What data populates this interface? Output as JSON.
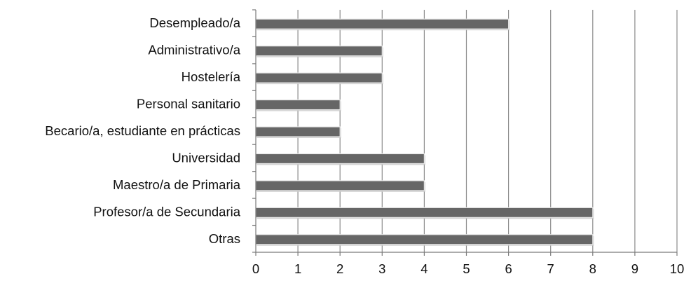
{
  "chart_data": {
    "type": "bar",
    "orientation": "horizontal",
    "categories": [
      "Desempleado/a",
      "Administrativo/a",
      "Hostelería",
      "Personal sanitario",
      "Becario/a, estudiante en prácticas",
      "Universidad",
      "Maestro/a de Primaria",
      "Profesor/a de Secundaria",
      "Otras"
    ],
    "values": [
      6,
      3,
      3,
      2,
      2,
      4,
      4,
      8,
      8
    ],
    "title": "",
    "xlabel": "",
    "ylabel": "",
    "xlim": [
      0,
      10
    ],
    "xticks": [
      "0",
      "1",
      "2",
      "3",
      "4",
      "5",
      "6",
      "7",
      "8",
      "9",
      "10"
    ],
    "grid": "vertical",
    "legend": "none",
    "colors": {
      "bar": "#666666",
      "bar_highlight": "#e6e6e6",
      "grid": "#8a8a8a",
      "axis": "#7a7a7a"
    }
  }
}
